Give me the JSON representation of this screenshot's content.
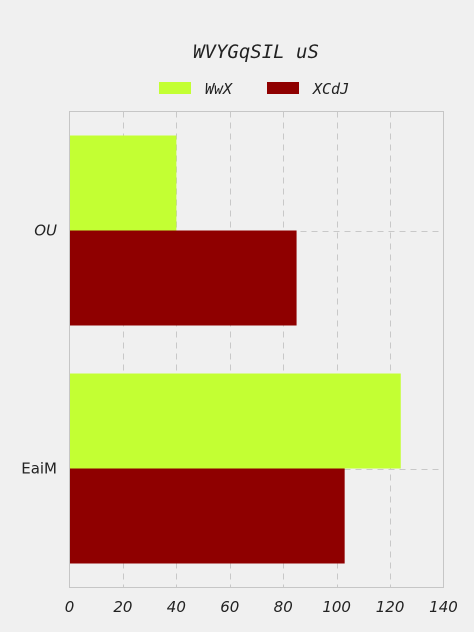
{
  "chart_data": {
    "type": "bar",
    "orientation": "horizontal",
    "title": "WVYGqSIL uS",
    "categories": [
      "OU",
      "EaiM"
    ],
    "series": [
      {
        "name": "WwX",
        "values": [
          40,
          124
        ],
        "color": "#c3ff33"
      },
      {
        "name": "XCdJ",
        "values": [
          85,
          103
        ],
        "color": "#8f0000"
      }
    ],
    "x_ticks": [
      0,
      20,
      40,
      60,
      80,
      100,
      120,
      140
    ],
    "xlim": [
      0,
      140
    ],
    "grid": true,
    "legend_position": "top-center"
  }
}
